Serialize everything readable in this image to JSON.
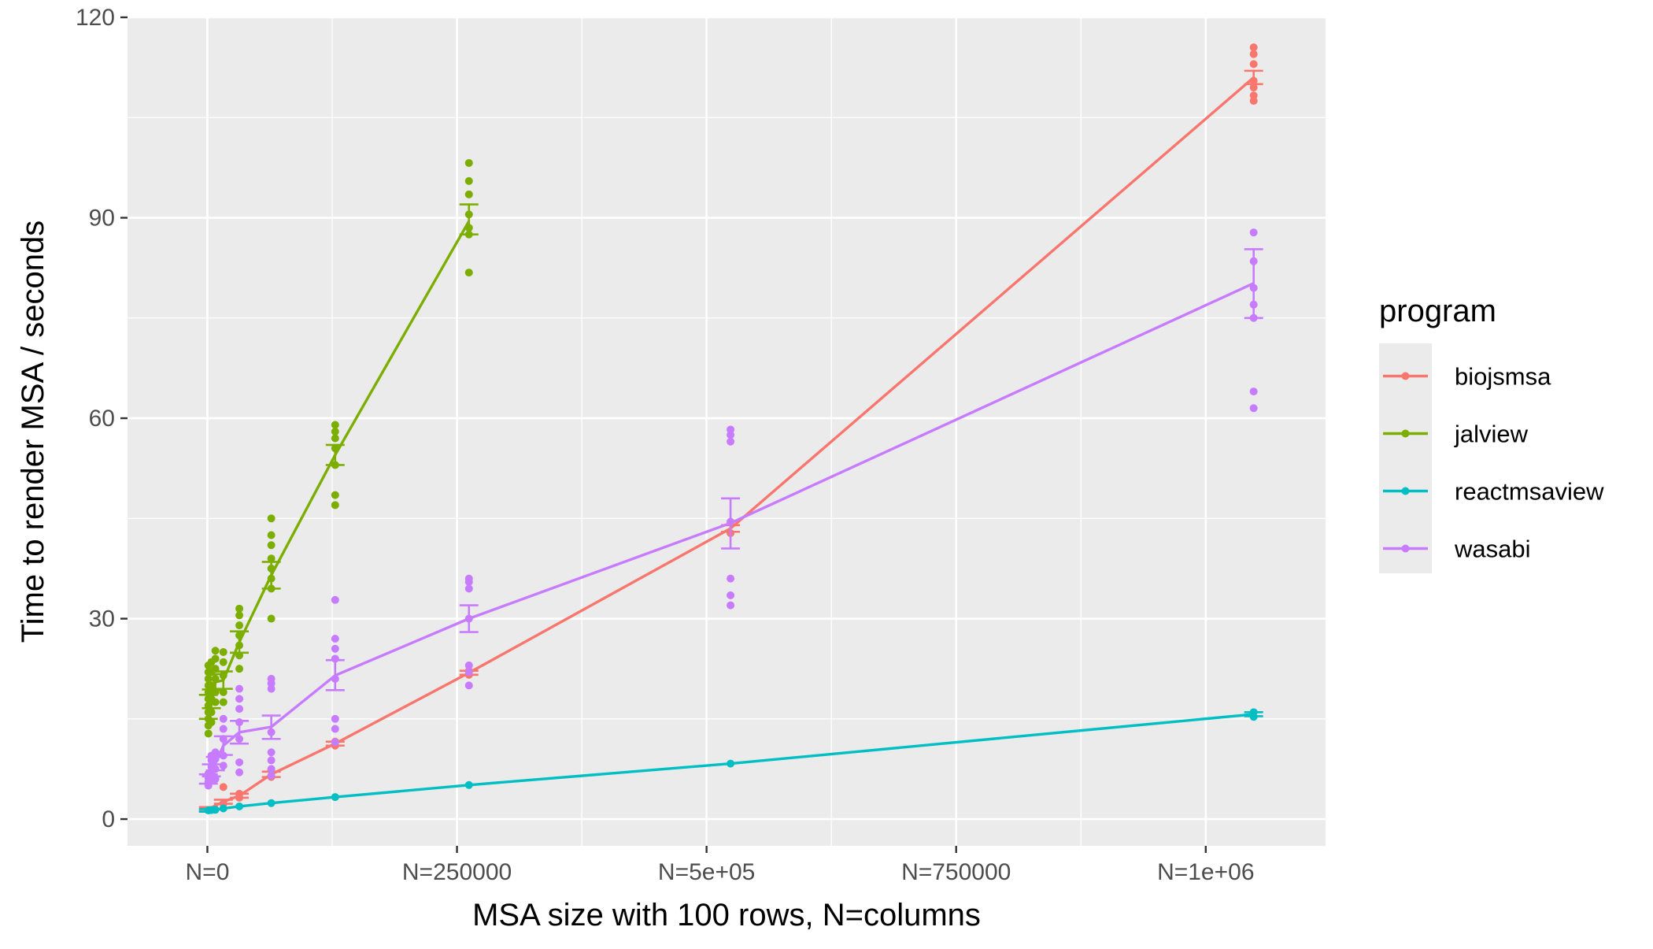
{
  "chart_data": {
    "type": "line",
    "title": "",
    "xlabel": "MSA size with 100 rows, N=columns",
    "ylabel": "Time to render MSA / seconds",
    "xlim": [
      -80000,
      1120000
    ],
    "ylim": [
      -4,
      120
    ],
    "x_ticks": [
      {
        "value": 0,
        "label": "N=0"
      },
      {
        "value": 250000,
        "label": "N=250000"
      },
      {
        "value": 500000,
        "label": "N=5e+05"
      },
      {
        "value": 750000,
        "label": "N=750000"
      },
      {
        "value": 1000000,
        "label": "N=1e+06"
      }
    ],
    "y_ticks": [
      {
        "value": 0,
        "label": "0"
      },
      {
        "value": 30,
        "label": "30"
      },
      {
        "value": 60,
        "label": "60"
      },
      {
        "value": 90,
        "label": "90"
      },
      {
        "value": 120,
        "label": "120"
      }
    ],
    "grid": true,
    "panel_background": "#ebebeb",
    "legend": {
      "title": "program",
      "position": "right"
    },
    "series": [
      {
        "name": "biojsmsa",
        "color": "#f8766d",
        "mean": [
          {
            "x": 1000,
            "y": 1.5
          },
          {
            "x": 16000,
            "y": 2.6
          },
          {
            "x": 32000,
            "y": 3.5
          },
          {
            "x": 64000,
            "y": 6.7
          },
          {
            "x": 128000,
            "y": 11.3
          },
          {
            "x": 262000,
            "y": 21.9
          },
          {
            "x": 524000,
            "y": 43.5
          },
          {
            "x": 1048000,
            "y": 111.0
          }
        ],
        "error": [
          {
            "x": 1000,
            "low": 1.2,
            "high": 1.8
          },
          {
            "x": 16000,
            "low": 2.3,
            "high": 2.9
          },
          {
            "x": 32000,
            "low": 3.2,
            "high": 3.8
          },
          {
            "x": 64000,
            "low": 6.3,
            "high": 7.1
          },
          {
            "x": 128000,
            "low": 11.0,
            "high": 11.6
          },
          {
            "x": 262000,
            "low": 21.6,
            "high": 22.2
          },
          {
            "x": 524000,
            "low": 43.0,
            "high": 44.0
          },
          {
            "x": 1048000,
            "low": 110.0,
            "high": 112.0
          }
        ],
        "points": [
          {
            "x": 16000,
            "y": 4.8
          },
          {
            "x": 16000,
            "y": 2.3
          },
          {
            "x": 32000,
            "y": 3.8
          },
          {
            "x": 32000,
            "y": 3.2
          },
          {
            "x": 64000,
            "y": 7.3
          },
          {
            "x": 64000,
            "y": 6.3
          },
          {
            "x": 128000,
            "y": 11.6
          },
          {
            "x": 128000,
            "y": 11.0
          },
          {
            "x": 262000,
            "y": 22.2
          },
          {
            "x": 262000,
            "y": 21.6
          },
          {
            "x": 524000,
            "y": 44.5
          },
          {
            "x": 524000,
            "y": 42.8
          },
          {
            "x": 1048000,
            "y": 115.5
          },
          {
            "x": 1048000,
            "y": 114.5
          },
          {
            "x": 1048000,
            "y": 113.0
          },
          {
            "x": 1048000,
            "y": 110.5
          },
          {
            "x": 1048000,
            "y": 109.5
          },
          {
            "x": 1048000,
            "y": 108.3
          },
          {
            "x": 1048000,
            "y": 107.5
          }
        ]
      },
      {
        "name": "jalview",
        "color": "#7cae00",
        "mean": [
          {
            "x": 1000,
            "y": 16.8
          },
          {
            "x": 2000,
            "y": 17.2
          },
          {
            "x": 4000,
            "y": 18.0
          },
          {
            "x": 8000,
            "y": 20.5
          },
          {
            "x": 16000,
            "y": 20.8
          },
          {
            "x": 32000,
            "y": 26.5
          },
          {
            "x": 64000,
            "y": 36.5
          },
          {
            "x": 128000,
            "y": 54.5
          },
          {
            "x": 262000,
            "y": 89.5
          }
        ],
        "error": [
          {
            "x": 1000,
            "low": 15.0,
            "high": 18.6
          },
          {
            "x": 4000,
            "low": 16.6,
            "high": 19.4
          },
          {
            "x": 8000,
            "low": 19.3,
            "high": 21.7
          },
          {
            "x": 16000,
            "low": 19.5,
            "high": 22.1
          },
          {
            "x": 32000,
            "low": 24.9,
            "high": 28.1
          },
          {
            "x": 64000,
            "low": 34.5,
            "high": 38.5
          },
          {
            "x": 128000,
            "low": 53.0,
            "high": 56.0
          },
          {
            "x": 262000,
            "low": 87.5,
            "high": 92.0
          }
        ],
        "points": [
          {
            "x": 1000,
            "y": 12.8
          },
          {
            "x": 1000,
            "y": 14.0
          },
          {
            "x": 1000,
            "y": 15.0
          },
          {
            "x": 1000,
            "y": 16.0
          },
          {
            "x": 1000,
            "y": 17.0
          },
          {
            "x": 1000,
            "y": 18.0
          },
          {
            "x": 1000,
            "y": 19.0
          },
          {
            "x": 1000,
            "y": 20.0
          },
          {
            "x": 1000,
            "y": 21.0
          },
          {
            "x": 1000,
            "y": 22.0
          },
          {
            "x": 1000,
            "y": 23.0
          },
          {
            "x": 4000,
            "y": 14.5
          },
          {
            "x": 4000,
            "y": 16.0
          },
          {
            "x": 4000,
            "y": 18.0
          },
          {
            "x": 4000,
            "y": 20.0
          },
          {
            "x": 4000,
            "y": 22.0
          },
          {
            "x": 4000,
            "y": 23.5
          },
          {
            "x": 8000,
            "y": 17.5
          },
          {
            "x": 8000,
            "y": 19.0
          },
          {
            "x": 8000,
            "y": 21.0
          },
          {
            "x": 8000,
            "y": 22.5
          },
          {
            "x": 8000,
            "y": 24.0
          },
          {
            "x": 8000,
            "y": 25.2
          },
          {
            "x": 16000,
            "y": 17.5
          },
          {
            "x": 16000,
            "y": 19.0
          },
          {
            "x": 16000,
            "y": 21.5
          },
          {
            "x": 16000,
            "y": 23.5
          },
          {
            "x": 16000,
            "y": 25.0
          },
          {
            "x": 32000,
            "y": 22.5
          },
          {
            "x": 32000,
            "y": 24.5
          },
          {
            "x": 32000,
            "y": 26.0
          },
          {
            "x": 32000,
            "y": 27.5
          },
          {
            "x": 32000,
            "y": 29.0
          },
          {
            "x": 32000,
            "y": 30.5
          },
          {
            "x": 32000,
            "y": 31.5
          },
          {
            "x": 64000,
            "y": 30.0
          },
          {
            "x": 64000,
            "y": 34.5
          },
          {
            "x": 64000,
            "y": 36.0
          },
          {
            "x": 64000,
            "y": 37.5
          },
          {
            "x": 64000,
            "y": 39.0
          },
          {
            "x": 64000,
            "y": 41.0
          },
          {
            "x": 64000,
            "y": 42.5
          },
          {
            "x": 64000,
            "y": 45.0
          },
          {
            "x": 128000,
            "y": 47.0
          },
          {
            "x": 128000,
            "y": 48.5
          },
          {
            "x": 128000,
            "y": 53.0
          },
          {
            "x": 128000,
            "y": 55.5
          },
          {
            "x": 128000,
            "y": 57.0
          },
          {
            "x": 128000,
            "y": 58.0
          },
          {
            "x": 128000,
            "y": 59.0
          },
          {
            "x": 262000,
            "y": 81.8
          },
          {
            "x": 262000,
            "y": 87.5
          },
          {
            "x": 262000,
            "y": 88.5
          },
          {
            "x": 262000,
            "y": 90.5
          },
          {
            "x": 262000,
            "y": 93.5
          },
          {
            "x": 262000,
            "y": 95.5
          },
          {
            "x": 262000,
            "y": 98.2
          }
        ]
      },
      {
        "name": "reactmsaview",
        "color": "#00bfc4",
        "mean": [
          {
            "x": 1000,
            "y": 1.3
          },
          {
            "x": 4000,
            "y": 1.35
          },
          {
            "x": 8000,
            "y": 1.4
          },
          {
            "x": 16000,
            "y": 1.6
          },
          {
            "x": 32000,
            "y": 1.9
          },
          {
            "x": 64000,
            "y": 2.4
          },
          {
            "x": 128000,
            "y": 3.3
          },
          {
            "x": 262000,
            "y": 5.1
          },
          {
            "x": 524000,
            "y": 8.3
          },
          {
            "x": 1048000,
            "y": 15.7
          }
        ],
        "error": [
          {
            "x": 1000,
            "low": 1.1,
            "high": 1.5
          },
          {
            "x": 1048000,
            "low": 15.4,
            "high": 16.0
          }
        ],
        "points": [
          {
            "x": 1000,
            "y": 1.3
          },
          {
            "x": 4000,
            "y": 1.35
          },
          {
            "x": 8000,
            "y": 1.4
          },
          {
            "x": 16000,
            "y": 1.6
          },
          {
            "x": 32000,
            "y": 1.9
          },
          {
            "x": 64000,
            "y": 2.4
          },
          {
            "x": 128000,
            "y": 3.3
          },
          {
            "x": 262000,
            "y": 5.1
          },
          {
            "x": 524000,
            "y": 8.3
          },
          {
            "x": 1048000,
            "y": 15.3
          },
          {
            "x": 1048000,
            "y": 16.0
          }
        ]
      },
      {
        "name": "wasabi",
        "color": "#c77cff",
        "mean": [
          {
            "x": 1000,
            "y": 6.0
          },
          {
            "x": 4000,
            "y": 7.3
          },
          {
            "x": 8000,
            "y": 8.3
          },
          {
            "x": 16000,
            "y": 11.0
          },
          {
            "x": 32000,
            "y": 13.0
          },
          {
            "x": 64000,
            "y": 13.8
          },
          {
            "x": 128000,
            "y": 21.5
          },
          {
            "x": 262000,
            "y": 30.0
          },
          {
            "x": 524000,
            "y": 44.3
          },
          {
            "x": 1048000,
            "y": 80.2
          }
        ],
        "error": [
          {
            "x": 1000,
            "low": 5.3,
            "high": 6.7
          },
          {
            "x": 4000,
            "low": 6.4,
            "high": 8.2
          },
          {
            "x": 8000,
            "low": 7.3,
            "high": 9.3
          },
          {
            "x": 16000,
            "low": 9.6,
            "high": 12.4
          },
          {
            "x": 32000,
            "low": 11.3,
            "high": 14.7
          },
          {
            "x": 64000,
            "low": 12.0,
            "high": 15.5
          },
          {
            "x": 128000,
            "low": 19.3,
            "high": 23.8
          },
          {
            "x": 262000,
            "low": 28.0,
            "high": 32.0
          },
          {
            "x": 524000,
            "low": 40.5,
            "high": 48.0
          },
          {
            "x": 1048000,
            "low": 75.0,
            "high": 85.3
          }
        ],
        "points": [
          {
            "x": 1000,
            "y": 5.0
          },
          {
            "x": 1000,
            "y": 5.6
          },
          {
            "x": 1000,
            "y": 6.2
          },
          {
            "x": 1000,
            "y": 6.8
          },
          {
            "x": 4000,
            "y": 5.8
          },
          {
            "x": 4000,
            "y": 6.8
          },
          {
            "x": 4000,
            "y": 7.8
          },
          {
            "x": 4000,
            "y": 8.8
          },
          {
            "x": 4000,
            "y": 9.5
          },
          {
            "x": 8000,
            "y": 6.0
          },
          {
            "x": 8000,
            "y": 7.5
          },
          {
            "x": 8000,
            "y": 9.0
          },
          {
            "x": 8000,
            "y": 10.0
          },
          {
            "x": 16000,
            "y": 8.0
          },
          {
            "x": 16000,
            "y": 9.5
          },
          {
            "x": 16000,
            "y": 12.0
          },
          {
            "x": 16000,
            "y": 13.5
          },
          {
            "x": 16000,
            "y": 15.0
          },
          {
            "x": 32000,
            "y": 7.0
          },
          {
            "x": 32000,
            "y": 8.5
          },
          {
            "x": 32000,
            "y": 12.0
          },
          {
            "x": 32000,
            "y": 14.5
          },
          {
            "x": 32000,
            "y": 16.5
          },
          {
            "x": 32000,
            "y": 18.0
          },
          {
            "x": 32000,
            "y": 19.5
          },
          {
            "x": 64000,
            "y": 6.5
          },
          {
            "x": 64000,
            "y": 7.5
          },
          {
            "x": 64000,
            "y": 8.8
          },
          {
            "x": 64000,
            "y": 10.0
          },
          {
            "x": 64000,
            "y": 13.0
          },
          {
            "x": 64000,
            "y": 19.5
          },
          {
            "x": 64000,
            "y": 20.3
          },
          {
            "x": 64000,
            "y": 21.0
          },
          {
            "x": 128000,
            "y": 11.5
          },
          {
            "x": 128000,
            "y": 13.5
          },
          {
            "x": 128000,
            "y": 15.0
          },
          {
            "x": 128000,
            "y": 21.0
          },
          {
            "x": 128000,
            "y": 24.0
          },
          {
            "x": 128000,
            "y": 25.5
          },
          {
            "x": 128000,
            "y": 27.0
          },
          {
            "x": 128000,
            "y": 32.8
          },
          {
            "x": 262000,
            "y": 20.0
          },
          {
            "x": 262000,
            "y": 22.0
          },
          {
            "x": 262000,
            "y": 23.0
          },
          {
            "x": 262000,
            "y": 30.0
          },
          {
            "x": 262000,
            "y": 34.5
          },
          {
            "x": 262000,
            "y": 35.5
          },
          {
            "x": 262000,
            "y": 36.0
          },
          {
            "x": 524000,
            "y": 32.0
          },
          {
            "x": 524000,
            "y": 33.5
          },
          {
            "x": 524000,
            "y": 36.0
          },
          {
            "x": 524000,
            "y": 44.5
          },
          {
            "x": 524000,
            "y": 56.5
          },
          {
            "x": 524000,
            "y": 57.5
          },
          {
            "x": 524000,
            "y": 58.3
          },
          {
            "x": 1048000,
            "y": 61.5
          },
          {
            "x": 1048000,
            "y": 64.0
          },
          {
            "x": 1048000,
            "y": 75.0
          },
          {
            "x": 1048000,
            "y": 77.0
          },
          {
            "x": 1048000,
            "y": 79.5
          },
          {
            "x": 1048000,
            "y": 83.5
          },
          {
            "x": 1048000,
            "y": 87.8
          }
        ]
      }
    ]
  }
}
